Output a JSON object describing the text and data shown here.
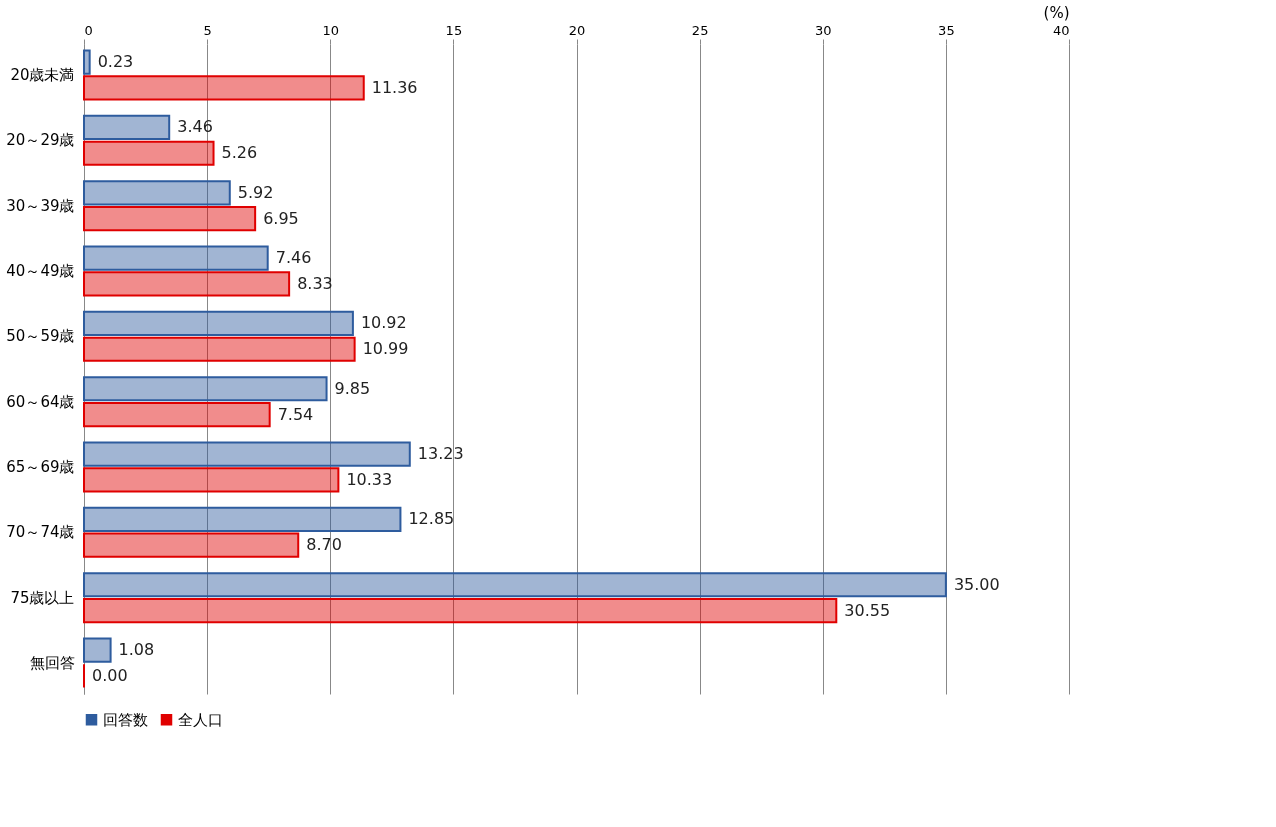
{
  "chart_data": {
    "type": "bar",
    "orientation": "horizontal",
    "xlabel": "(%)",
    "categories": [
      "20歳未満",
      "20～29歳",
      "30～39歳",
      "40～49歳",
      "50～59歳",
      "60～64歳",
      "65～69歳",
      "70～74歳",
      "75歳以上",
      "無回答"
    ],
    "series": [
      {
        "name": "回答数",
        "color": "#2e5c9e",
        "values": [
          0.23,
          3.46,
          5.92,
          7.46,
          10.92,
          9.85,
          13.23,
          12.85,
          35.0,
          1.08
        ],
        "value_labels": [
          "0.23",
          "3.46",
          "5.92",
          "7.46",
          "10.92",
          "9.85",
          "13.23",
          "12.85",
          "35.00",
          "1.08"
        ]
      },
      {
        "name": "全人口",
        "color": "#e00000",
        "values": [
          11.36,
          5.26,
          6.95,
          8.33,
          10.99,
          7.54,
          10.33,
          8.7,
          30.55,
          0.0
        ],
        "value_labels": [
          "11.36",
          "5.26",
          "6.95",
          "8.33",
          "10.99",
          "7.54",
          "10.33",
          "8.70",
          "30.55",
          "0.00"
        ]
      }
    ],
    "xlim": [
      0,
      40
    ],
    "xticks": [
      0,
      5,
      10,
      15,
      20,
      25,
      30,
      35,
      40
    ],
    "grid": "x",
    "legend": "bottom"
  }
}
